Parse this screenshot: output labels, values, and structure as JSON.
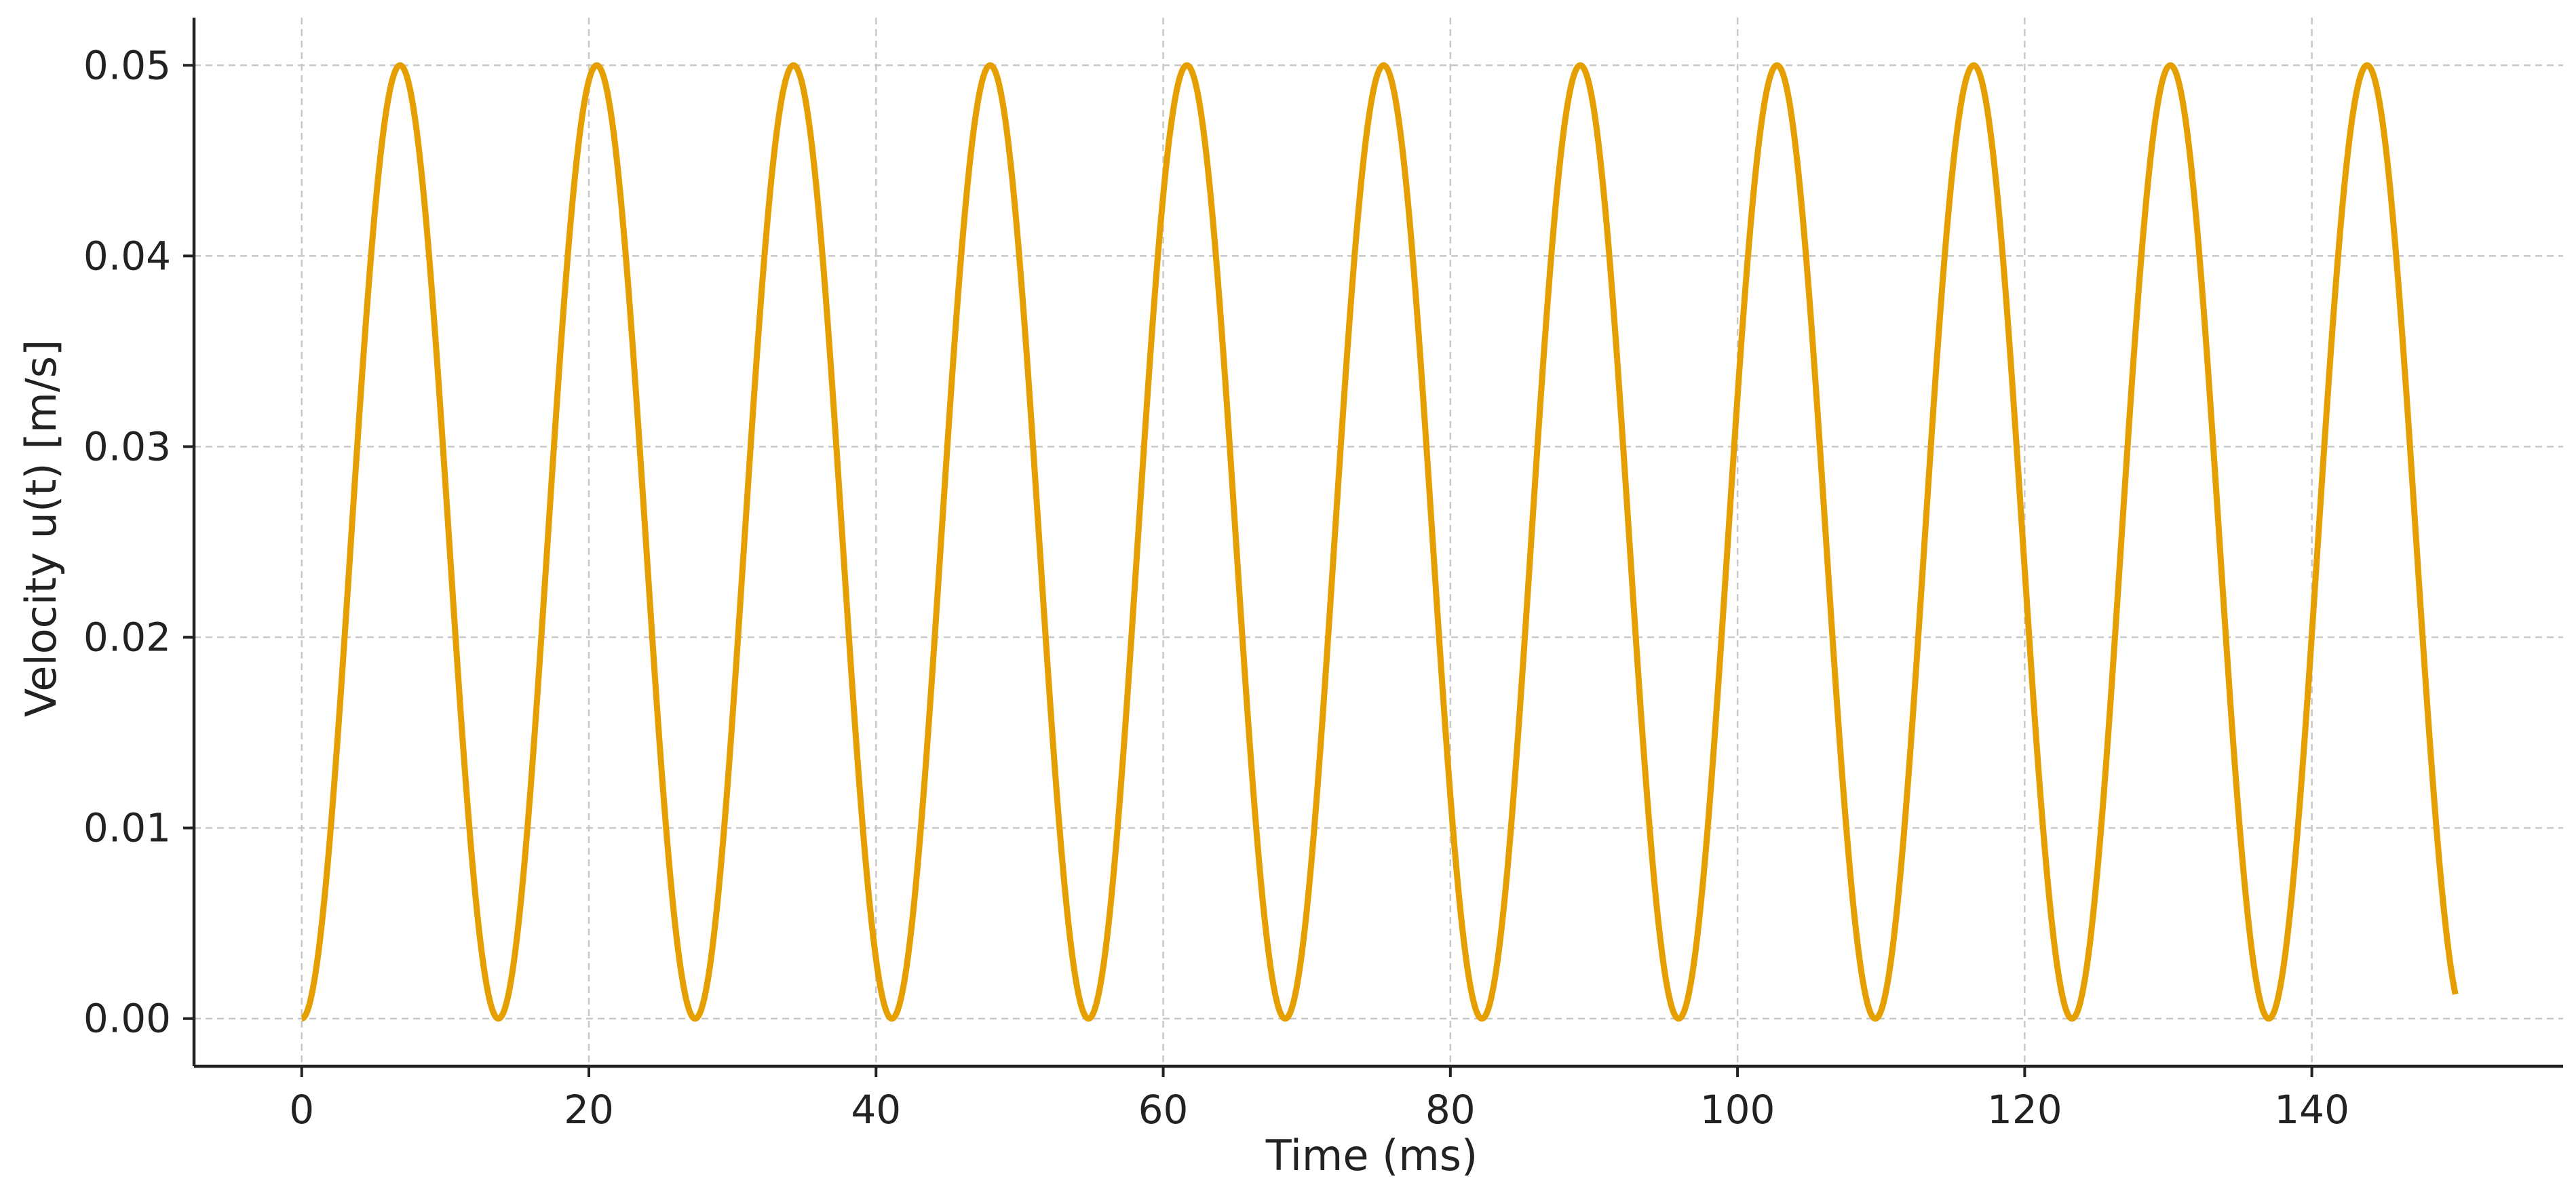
{
  "chart_data": {
    "type": "line",
    "title": "",
    "xlabel": "Time (ms)",
    "ylabel": "Velocity u(t) [m/s]",
    "xlim": [
      -7.5,
      157.5
    ],
    "ylim": [
      -0.0025,
      0.0525
    ],
    "x_ticks": [
      0,
      20,
      40,
      60,
      80,
      100,
      120,
      140
    ],
    "x_tick_labels": [
      "0",
      "20",
      "40",
      "60",
      "80",
      "100",
      "120",
      "140"
    ],
    "y_ticks": [
      0.0,
      0.01,
      0.02,
      0.03,
      0.04,
      0.05
    ],
    "y_tick_labels": [
      "0.00",
      "0.01",
      "0.02",
      "0.03",
      "0.04",
      "0.05"
    ],
    "grid": true,
    "grid_style": "dashed",
    "spines": "left-bottom",
    "series": [
      {
        "color": "#E69F00",
        "function": "u(t) = 0.025 * (1 - cos(2*pi*t/13.7))",
        "amplitude": 0.025,
        "offset": 0.025,
        "period_ms": 13.7,
        "x_range": [
          0,
          150
        ],
        "peaks": [
          {
            "x": 6.85,
            "y": 0.05
          },
          {
            "x": 20.55,
            "y": 0.05
          },
          {
            "x": 34.25,
            "y": 0.05
          },
          {
            "x": 47.95,
            "y": 0.05
          },
          {
            "x": 61.65,
            "y": 0.05
          },
          {
            "x": 75.35,
            "y": 0.05
          },
          {
            "x": 89.05,
            "y": 0.05
          },
          {
            "x": 102.75,
            "y": 0.05
          },
          {
            "x": 116.45,
            "y": 0.05
          },
          {
            "x": 130.15,
            "y": 0.05
          },
          {
            "x": 143.85,
            "y": 0.05
          }
        ],
        "troughs": [
          {
            "x": 0,
            "y": 0.0
          },
          {
            "x": 13.7,
            "y": 0.0
          },
          {
            "x": 27.4,
            "y": 0.0
          },
          {
            "x": 41.1,
            "y": 0.0
          },
          {
            "x": 54.8,
            "y": 0.0
          },
          {
            "x": 68.5,
            "y": 0.0
          },
          {
            "x": 82.2,
            "y": 0.0
          },
          {
            "x": 95.9,
            "y": 0.0
          },
          {
            "x": 109.6,
            "y": 0.0
          },
          {
            "x": 123.3,
            "y": 0.0
          },
          {
            "x": 137.0,
            "y": 0.0
          }
        ],
        "end_point": {
          "x": 150,
          "y": 0.001
        }
      }
    ]
  },
  "colors": {
    "line": "#E69F00",
    "grid": "#c8c8c8",
    "axis": "#222222",
    "text": "#222222"
  }
}
